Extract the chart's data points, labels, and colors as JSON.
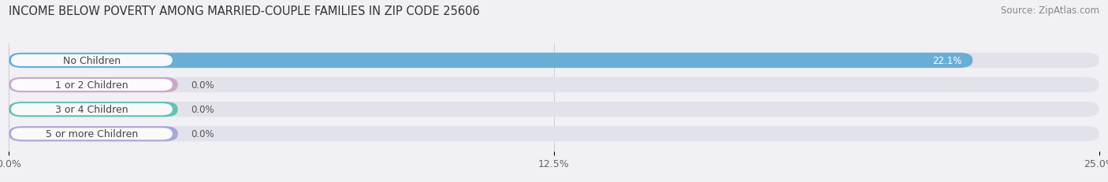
{
  "title": "INCOME BELOW POVERTY AMONG MARRIED-COUPLE FAMILIES IN ZIP CODE 25606",
  "source": "Source: ZipAtlas.com",
  "categories": [
    "No Children",
    "1 or 2 Children",
    "3 or 4 Children",
    "5 or more Children"
  ],
  "values": [
    22.1,
    0.0,
    0.0,
    0.0
  ],
  "bar_colors": [
    "#6aaed6",
    "#c9a8c8",
    "#62c2b5",
    "#a8a8d8"
  ],
  "background_color": "#f0f0f5",
  "bar_bg_color": "#e2e2ea",
  "xlim": [
    0,
    25.0
  ],
  "xticks": [
    0.0,
    12.5,
    25.0
  ],
  "xtick_labels": [
    "0.0%",
    "12.5%",
    "25.0%"
  ],
  "title_fontsize": 10.5,
  "source_fontsize": 8.5,
  "label_fontsize": 9,
  "value_fontsize": 8.5,
  "tick_fontsize": 9
}
